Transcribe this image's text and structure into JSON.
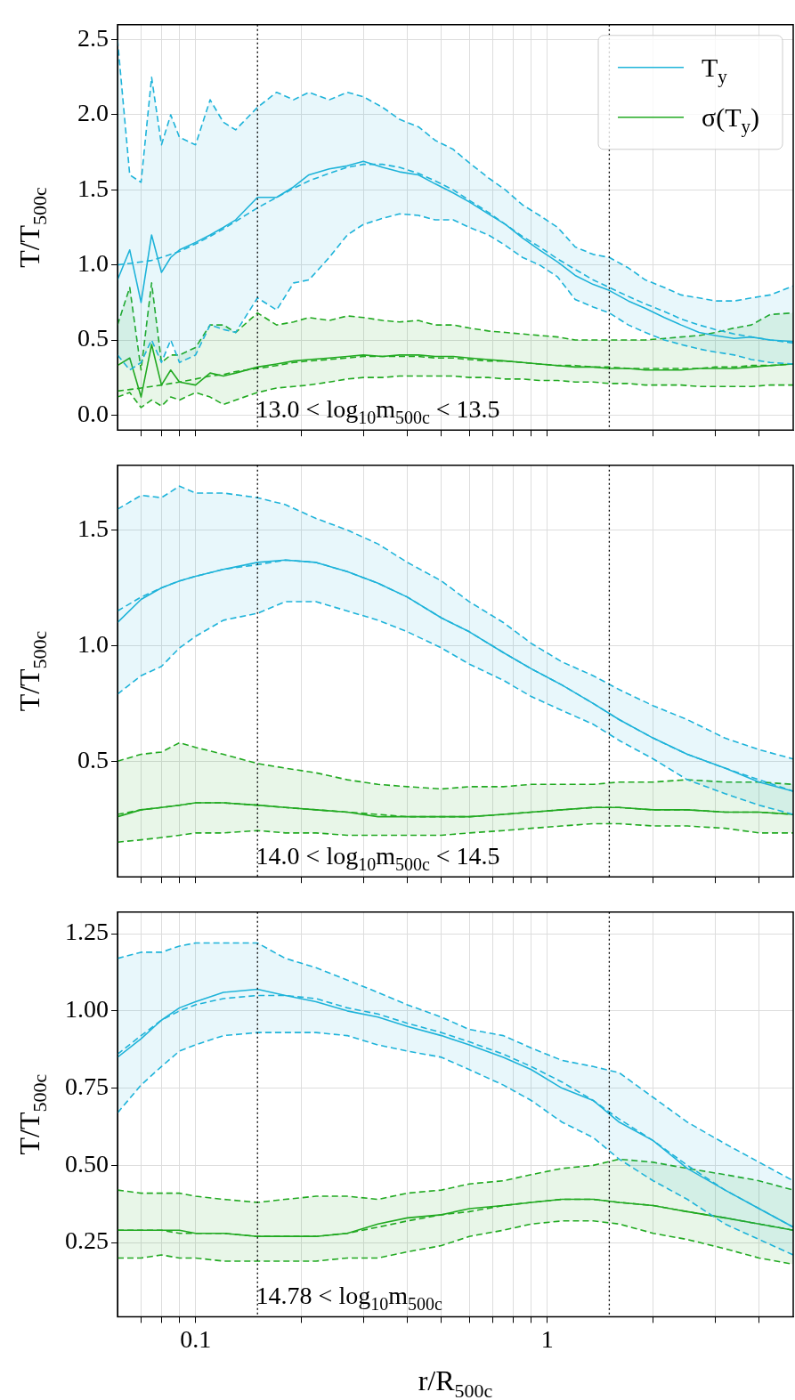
{
  "chart_data": [
    {
      "type": "line",
      "log": "x",
      "grid": true,
      "legend": "top right",
      "tick_labels": "y",
      "ylabel": "T/T$_{500c}$",
      "xlim": [
        0.06,
        5
      ],
      "ylim": [
        -0.1,
        2.6
      ],
      "xticks": [
        {
          "value": 0.07,
          "label": null
        },
        {
          "value": 0.08,
          "label": null
        },
        {
          "value": 0.09,
          "label": null
        },
        {
          "value": 0.1,
          "label": null
        },
        {
          "value": 0.2,
          "label": null
        },
        {
          "value": 0.3,
          "label": null
        },
        {
          "value": 0.4,
          "label": null
        },
        {
          "value": 0.5,
          "label": null
        },
        {
          "value": 0.6,
          "label": null
        },
        {
          "value": 0.7,
          "label": null
        },
        {
          "value": 0.8,
          "label": null
        },
        {
          "value": 0.9,
          "label": null
        },
        {
          "value": 1,
          "label": null
        },
        {
          "value": 2,
          "label": null
        },
        {
          "value": 3,
          "label": null
        },
        {
          "value": 4,
          "label": null
        }
      ],
      "yticks": [
        {
          "value": 0,
          "label": "0.0"
        },
        0.5,
        {
          "value": 1,
          "label": "1.0"
        },
        1.5,
        {
          "value": 2,
          "label": "2.0"
        },
        2.5
      ],
      "x": [
        0.06,
        0.065,
        0.07,
        0.075,
        0.08,
        0.085,
        0.09,
        0.1,
        0.11,
        0.12,
        0.13,
        0.15,
        0.17,
        0.19,
        0.21,
        0.24,
        0.27,
        0.3,
        0.34,
        0.38,
        0.43,
        0.48,
        0.54,
        0.6,
        0.68,
        0.76,
        0.85,
        0.95,
        1.07,
        1.2,
        1.35,
        1.5,
        1.7,
        1.9,
        2.15,
        2.4,
        2.7,
        3.0,
        3.4,
        3.8,
        4.3,
        5.0
      ],
      "series": [
        {
          "name": "T$_{y}$",
          "color": "#1fb4da",
          "line_style": "solid",
          "values": [
            0.9,
            1.1,
            0.75,
            1.2,
            0.95,
            1.05,
            1.1,
            1.15,
            1.2,
            1.25,
            1.3,
            1.45,
            1.45,
            1.52,
            1.6,
            1.64,
            1.66,
            1.69,
            1.65,
            1.62,
            1.6,
            1.54,
            1.48,
            1.42,
            1.34,
            1.27,
            1.18,
            1.1,
            1.02,
            0.93,
            0.87,
            0.83,
            0.76,
            0.71,
            0.65,
            0.6,
            0.55,
            0.53,
            0.51,
            0.52,
            0.5,
            0.49
          ],
          "upper": [
            2.5,
            1.6,
            1.55,
            2.25,
            1.8,
            2.0,
            1.85,
            1.8,
            2.1,
            1.95,
            1.9,
            2.05,
            2.15,
            2.1,
            2.15,
            2.1,
            2.15,
            2.12,
            2.05,
            1.97,
            1.92,
            1.83,
            1.77,
            1.68,
            1.58,
            1.5,
            1.4,
            1.33,
            1.25,
            1.12,
            1.07,
            1.05,
            0.98,
            0.9,
            0.85,
            0.8,
            0.78,
            0.76,
            0.76,
            0.78,
            0.8,
            0.86
          ],
          "lower": [
            0.4,
            0.3,
            0.35,
            0.5,
            0.35,
            0.5,
            0.35,
            0.4,
            0.6,
            0.57,
            0.55,
            0.78,
            0.7,
            0.88,
            0.9,
            1.05,
            1.2,
            1.27,
            1.31,
            1.34,
            1.33,
            1.3,
            1.3,
            1.25,
            1.2,
            1.13,
            1.05,
            1.0,
            0.92,
            0.77,
            0.72,
            0.68,
            0.6,
            0.55,
            0.5,
            0.47,
            0.44,
            0.42,
            0.4,
            0.37,
            0.35,
            0.34
          ]
        },
        {
          "color": "#1fb4da",
          "line_style": "dashed",
          "values": [
            2.5,
            1.6,
            1.55,
            2.25,
            1.8,
            2.0,
            1.85,
            1.8,
            2.1,
            1.95,
            1.9,
            2.05,
            2.15,
            2.1,
            2.15,
            2.1,
            2.15,
            2.12,
            2.05,
            1.97,
            1.92,
            1.83,
            1.77,
            1.68,
            1.58,
            1.5,
            1.4,
            1.33,
            1.25,
            1.12,
            1.07,
            1.05,
            0.98,
            0.9,
            0.85,
            0.8,
            0.78,
            0.76,
            0.76,
            0.78,
            0.8,
            0.86
          ]
        },
        {
          "color": "#1fb4da",
          "line_style": "dashed",
          "values": [
            0.4,
            0.3,
            0.35,
            0.5,
            0.35,
            0.5,
            0.35,
            0.4,
            0.6,
            0.57,
            0.55,
            0.78,
            0.7,
            0.88,
            0.9,
            1.05,
            1.2,
            1.27,
            1.31,
            1.34,
            1.33,
            1.3,
            1.3,
            1.25,
            1.2,
            1.13,
            1.05,
            1.0,
            0.92,
            0.77,
            0.72,
            0.68,
            0.6,
            0.55,
            0.5,
            0.47,
            0.44,
            0.42,
            0.4,
            0.37,
            0.35,
            0.34
          ]
        },
        {
          "color": "#1fb4da",
          "line_style": "dashed",
          "values": [
            1.0,
            1.01,
            1.02,
            1.03,
            1.05,
            1.07,
            1.09,
            1.14,
            1.19,
            1.24,
            1.29,
            1.38,
            1.45,
            1.51,
            1.56,
            1.61,
            1.65,
            1.67,
            1.67,
            1.65,
            1.61,
            1.56,
            1.5,
            1.43,
            1.35,
            1.27,
            1.19,
            1.12,
            1.04,
            0.97,
            0.9,
            0.85,
            0.79,
            0.74,
            0.69,
            0.64,
            0.6,
            0.57,
            0.54,
            0.52,
            0.5,
            0.48
          ]
        },
        {
          "name": "σ(T$_{y}$)",
          "color": "#22aa22",
          "line_style": "solid",
          "values": [
            0.33,
            0.38,
            0.12,
            0.47,
            0.2,
            0.3,
            0.22,
            0.2,
            0.28,
            0.26,
            0.28,
            0.32,
            0.34,
            0.36,
            0.37,
            0.38,
            0.39,
            0.4,
            0.39,
            0.4,
            0.4,
            0.39,
            0.39,
            0.38,
            0.37,
            0.36,
            0.35,
            0.34,
            0.33,
            0.32,
            0.32,
            0.31,
            0.31,
            0.3,
            0.3,
            0.3,
            0.31,
            0.31,
            0.31,
            0.32,
            0.33,
            0.34
          ],
          "upper": [
            0.6,
            0.85,
            0.3,
            0.88,
            0.35,
            0.4,
            0.4,
            0.45,
            0.6,
            0.6,
            0.55,
            0.68,
            0.6,
            0.62,
            0.65,
            0.63,
            0.66,
            0.65,
            0.63,
            0.62,
            0.63,
            0.6,
            0.6,
            0.58,
            0.56,
            0.55,
            0.54,
            0.53,
            0.52,
            0.5,
            0.5,
            0.5,
            0.5,
            0.5,
            0.51,
            0.52,
            0.53,
            0.55,
            0.58,
            0.6,
            0.67,
            0.68
          ],
          "lower": [
            0.12,
            0.15,
            0.05,
            0.1,
            0.06,
            0.12,
            0.1,
            0.15,
            0.12,
            0.07,
            0.1,
            0.15,
            0.18,
            0.19,
            0.2,
            0.22,
            0.24,
            0.25,
            0.25,
            0.26,
            0.26,
            0.26,
            0.26,
            0.25,
            0.25,
            0.24,
            0.24,
            0.23,
            0.23,
            0.22,
            0.22,
            0.21,
            0.21,
            0.2,
            0.2,
            0.2,
            0.19,
            0.19,
            0.19,
            0.19,
            0.2,
            0.2
          ]
        },
        {
          "color": "#22aa22",
          "line_style": "dashed",
          "values": [
            0.6,
            0.85,
            0.3,
            0.88,
            0.35,
            0.4,
            0.4,
            0.45,
            0.6,
            0.6,
            0.55,
            0.68,
            0.6,
            0.62,
            0.65,
            0.63,
            0.66,
            0.65,
            0.63,
            0.62,
            0.63,
            0.6,
            0.6,
            0.58,
            0.56,
            0.55,
            0.54,
            0.53,
            0.52,
            0.5,
            0.5,
            0.5,
            0.5,
            0.5,
            0.51,
            0.52,
            0.53,
            0.55,
            0.58,
            0.6,
            0.67,
            0.68
          ]
        },
        {
          "color": "#22aa22",
          "line_style": "dashed",
          "values": [
            0.12,
            0.15,
            0.05,
            0.1,
            0.06,
            0.12,
            0.1,
            0.15,
            0.12,
            0.07,
            0.1,
            0.15,
            0.18,
            0.19,
            0.2,
            0.22,
            0.24,
            0.25,
            0.25,
            0.26,
            0.26,
            0.26,
            0.26,
            0.25,
            0.25,
            0.24,
            0.24,
            0.23,
            0.23,
            0.22,
            0.22,
            0.21,
            0.21,
            0.2,
            0.2,
            0.2,
            0.19,
            0.19,
            0.19,
            0.19,
            0.2,
            0.2
          ]
        },
        {
          "color": "#22aa22",
          "line_style": "dashed",
          "values": [
            0.16,
            0.17,
            0.18,
            0.19,
            0.2,
            0.21,
            0.22,
            0.24,
            0.26,
            0.27,
            0.29,
            0.31,
            0.33,
            0.35,
            0.36,
            0.37,
            0.38,
            0.39,
            0.39,
            0.39,
            0.39,
            0.38,
            0.38,
            0.37,
            0.36,
            0.36,
            0.35,
            0.34,
            0.33,
            0.33,
            0.32,
            0.32,
            0.31,
            0.31,
            0.31,
            0.31,
            0.31,
            0.32,
            0.32,
            0.33,
            0.33,
            0.34
          ]
        }
      ],
      "ref_lines": [
        {
          "axis": "x",
          "value": 0.15,
          "color": "#000000",
          "line_style": "dotted"
        },
        {
          "axis": "x",
          "value": 1.5,
          "color": "#000000",
          "line_style": "dotted"
        }
      ],
      "annotations": [
        "13.0 < log$_{10}$m$_{500c}$ < 13.5"
      ]
    },
    {
      "type": "line",
      "log": "x",
      "grid": true,
      "tick_labels": "y",
      "ylabel": "T/T$_{500c}$",
      "xlim": [
        0.06,
        5
      ],
      "ylim": [
        0,
        1.78
      ],
      "xticks": [
        {
          "value": 0.07,
          "label": null
        },
        {
          "value": 0.08,
          "label": null
        },
        {
          "value": 0.09,
          "label": null
        },
        {
          "value": 0.1,
          "label": null
        },
        {
          "value": 0.2,
          "label": null
        },
        {
          "value": 0.3,
          "label": null
        },
        {
          "value": 0.4,
          "label": null
        },
        {
          "value": 0.5,
          "label": null
        },
        {
          "value": 0.6,
          "label": null
        },
        {
          "value": 0.7,
          "label": null
        },
        {
          "value": 0.8,
          "label": null
        },
        {
          "value": 0.9,
          "label": null
        },
        {
          "value": 1,
          "label": null
        },
        {
          "value": 2,
          "label": null
        },
        {
          "value": 3,
          "label": null
        },
        {
          "value": 4,
          "label": null
        }
      ],
      "yticks": [
        0.5,
        {
          "value": 1,
          "label": "1.0"
        },
        1.5
      ],
      "x": [
        0.06,
        0.07,
        0.08,
        0.09,
        0.1,
        0.12,
        0.15,
        0.18,
        0.22,
        0.27,
        0.33,
        0.4,
        0.5,
        0.6,
        0.75,
        0.9,
        1.1,
        1.35,
        1.6,
        2.0,
        2.5,
        3.2,
        4.0,
        5.0
      ],
      "series": [
        {
          "color": "#1fb4da",
          "line_style": "solid",
          "values": [
            1.1,
            1.2,
            1.25,
            1.28,
            1.3,
            1.33,
            1.36,
            1.37,
            1.36,
            1.32,
            1.27,
            1.21,
            1.12,
            1.06,
            0.97,
            0.9,
            0.83,
            0.75,
            0.68,
            0.6,
            0.53,
            0.47,
            0.41,
            0.37
          ],
          "upper": [
            1.59,
            1.65,
            1.64,
            1.69,
            1.66,
            1.66,
            1.64,
            1.61,
            1.55,
            1.5,
            1.44,
            1.36,
            1.28,
            1.19,
            1.1,
            1.01,
            0.93,
            0.87,
            0.81,
            0.74,
            0.68,
            0.6,
            0.55,
            0.51
          ],
          "lower": [
            0.79,
            0.87,
            0.91,
            0.99,
            1.04,
            1.11,
            1.14,
            1.19,
            1.19,
            1.15,
            1.11,
            1.06,
            0.99,
            0.92,
            0.85,
            0.78,
            0.72,
            0.66,
            0.59,
            0.51,
            0.42,
            0.36,
            0.31,
            0.27
          ]
        },
        {
          "color": "#1fb4da",
          "line_style": "dashed",
          "values": [
            1.59,
            1.65,
            1.64,
            1.69,
            1.66,
            1.66,
            1.64,
            1.61,
            1.55,
            1.5,
            1.44,
            1.36,
            1.28,
            1.19,
            1.1,
            1.01,
            0.93,
            0.87,
            0.81,
            0.74,
            0.68,
            0.6,
            0.55,
            0.51
          ]
        },
        {
          "color": "#1fb4da",
          "line_style": "dashed",
          "values": [
            0.79,
            0.87,
            0.91,
            0.99,
            1.04,
            1.11,
            1.14,
            1.19,
            1.19,
            1.15,
            1.11,
            1.06,
            0.99,
            0.92,
            0.85,
            0.78,
            0.72,
            0.66,
            0.59,
            0.51,
            0.42,
            0.36,
            0.31,
            0.27
          ]
        },
        {
          "color": "#1fb4da",
          "line_style": "dashed",
          "values": [
            1.15,
            1.21,
            1.25,
            1.28,
            1.3,
            1.33,
            1.35,
            1.37,
            1.36,
            1.32,
            1.27,
            1.21,
            1.12,
            1.06,
            0.97,
            0.9,
            0.83,
            0.75,
            0.68,
            0.6,
            0.53,
            0.47,
            0.42,
            0.37
          ]
        },
        {
          "color": "#22aa22",
          "line_style": "solid",
          "values": [
            0.26,
            0.29,
            0.3,
            0.31,
            0.32,
            0.32,
            0.31,
            0.3,
            0.29,
            0.28,
            0.26,
            0.26,
            0.26,
            0.26,
            0.27,
            0.28,
            0.29,
            0.3,
            0.3,
            0.29,
            0.29,
            0.28,
            0.28,
            0.27
          ],
          "upper": [
            0.5,
            0.53,
            0.54,
            0.58,
            0.56,
            0.53,
            0.49,
            0.47,
            0.45,
            0.42,
            0.4,
            0.39,
            0.38,
            0.39,
            0.39,
            0.4,
            0.4,
            0.4,
            0.41,
            0.41,
            0.42,
            0.41,
            0.41,
            0.4
          ],
          "lower": [
            0.15,
            0.16,
            0.17,
            0.18,
            0.19,
            0.19,
            0.2,
            0.19,
            0.19,
            0.18,
            0.18,
            0.18,
            0.18,
            0.19,
            0.2,
            0.21,
            0.22,
            0.23,
            0.23,
            0.22,
            0.22,
            0.21,
            0.19,
            0.19
          ]
        },
        {
          "color": "#22aa22",
          "line_style": "dashed",
          "values": [
            0.5,
            0.53,
            0.54,
            0.58,
            0.56,
            0.53,
            0.49,
            0.47,
            0.45,
            0.42,
            0.4,
            0.39,
            0.38,
            0.39,
            0.39,
            0.4,
            0.4,
            0.4,
            0.41,
            0.41,
            0.42,
            0.41,
            0.41,
            0.4
          ]
        },
        {
          "color": "#22aa22",
          "line_style": "dashed",
          "values": [
            0.15,
            0.16,
            0.17,
            0.18,
            0.19,
            0.19,
            0.2,
            0.19,
            0.19,
            0.18,
            0.18,
            0.18,
            0.18,
            0.19,
            0.2,
            0.21,
            0.22,
            0.23,
            0.23,
            0.22,
            0.22,
            0.21,
            0.19,
            0.19
          ]
        },
        {
          "color": "#22aa22",
          "line_style": "dashed",
          "values": [
            0.27,
            0.29,
            0.3,
            0.31,
            0.32,
            0.32,
            0.31,
            0.3,
            0.29,
            0.28,
            0.27,
            0.26,
            0.26,
            0.26,
            0.27,
            0.28,
            0.29,
            0.3,
            0.3,
            0.29,
            0.29,
            0.28,
            0.28,
            0.27
          ]
        }
      ],
      "ref_lines": [
        {
          "axis": "x",
          "value": 0.15,
          "color": "#000000",
          "line_style": "dotted"
        },
        {
          "axis": "x",
          "value": 1.5,
          "color": "#000000",
          "line_style": "dotted"
        }
      ],
      "annotations": [
        "14.0 < log$_{10}$m$_{500c}$ < 14.5"
      ]
    },
    {
      "type": "line",
      "log": "x",
      "grid": true,
      "xlabel": "r/R$_{500c}$",
      "ylabel": "T/T$_{500c}$",
      "xlim": [
        0.06,
        5
      ],
      "ylim": [
        0.01,
        1.32
      ],
      "xticks": [
        {
          "value": 0.07,
          "label": null
        },
        {
          "value": 0.08,
          "label": null
        },
        {
          "value": 0.09,
          "label": null
        },
        0.1,
        {
          "value": 0.2,
          "label": null
        },
        {
          "value": 0.3,
          "label": null
        },
        {
          "value": 0.4,
          "label": null
        },
        {
          "value": 0.5,
          "label": null
        },
        {
          "value": 0.6,
          "label": null
        },
        {
          "value": 0.7,
          "label": null
        },
        {
          "value": 0.8,
          "label": null
        },
        {
          "value": 0.9,
          "label": null
        },
        1,
        {
          "value": 2,
          "label": null
        },
        {
          "value": 3,
          "label": null
        },
        {
          "value": 4,
          "label": null
        }
      ],
      "yticks": [
        0.25,
        {
          "value": 0.5,
          "label": "0.50"
        },
        0.75,
        {
          "value": 1,
          "label": "1.00"
        },
        1.25
      ],
      "x": [
        0.06,
        0.07,
        0.08,
        0.09,
        0.1,
        0.12,
        0.15,
        0.18,
        0.22,
        0.27,
        0.33,
        0.4,
        0.5,
        0.6,
        0.75,
        0.9,
        1.1,
        1.35,
        1.6,
        2.0,
        2.5,
        3.2,
        4.0,
        5.0
      ],
      "series": [
        {
          "color": "#1fb4da",
          "line_style": "solid",
          "values": [
            0.85,
            0.91,
            0.97,
            1.01,
            1.03,
            1.06,
            1.07,
            1.05,
            1.03,
            1.0,
            0.98,
            0.95,
            0.92,
            0.89,
            0.85,
            0.81,
            0.75,
            0.71,
            0.64,
            0.58,
            0.49,
            0.42,
            0.36,
            0.3
          ],
          "upper": [
            1.17,
            1.19,
            1.19,
            1.21,
            1.22,
            1.22,
            1.22,
            1.17,
            1.14,
            1.1,
            1.06,
            1.02,
            0.98,
            0.94,
            0.92,
            0.88,
            0.84,
            0.82,
            0.8,
            0.72,
            0.64,
            0.57,
            0.51,
            0.45
          ],
          "lower": [
            0.67,
            0.76,
            0.82,
            0.87,
            0.89,
            0.92,
            0.93,
            0.93,
            0.93,
            0.92,
            0.89,
            0.87,
            0.85,
            0.81,
            0.76,
            0.71,
            0.64,
            0.59,
            0.52,
            0.45,
            0.39,
            0.31,
            0.26,
            0.21
          ]
        },
        {
          "color": "#1fb4da",
          "line_style": "dashed",
          "values": [
            1.17,
            1.19,
            1.19,
            1.21,
            1.22,
            1.22,
            1.22,
            1.17,
            1.14,
            1.1,
            1.06,
            1.02,
            0.98,
            0.94,
            0.92,
            0.88,
            0.84,
            0.82,
            0.8,
            0.72,
            0.64,
            0.57,
            0.51,
            0.45
          ]
        },
        {
          "color": "#1fb4da",
          "line_style": "dashed",
          "values": [
            0.67,
            0.76,
            0.82,
            0.87,
            0.89,
            0.92,
            0.93,
            0.93,
            0.93,
            0.92,
            0.89,
            0.87,
            0.85,
            0.81,
            0.76,
            0.71,
            0.64,
            0.59,
            0.52,
            0.45,
            0.39,
            0.31,
            0.26,
            0.21
          ]
        },
        {
          "color": "#1fb4da",
          "line_style": "dashed",
          "values": [
            0.86,
            0.92,
            0.97,
            1.0,
            1.02,
            1.04,
            1.05,
            1.05,
            1.04,
            1.01,
            0.99,
            0.96,
            0.93,
            0.9,
            0.86,
            0.82,
            0.77,
            0.71,
            0.65,
            0.58,
            0.5,
            0.42,
            0.36,
            0.3
          ]
        },
        {
          "color": "#22aa22",
          "line_style": "solid",
          "values": [
            0.29,
            0.29,
            0.29,
            0.29,
            0.28,
            0.28,
            0.27,
            0.27,
            0.27,
            0.28,
            0.31,
            0.33,
            0.34,
            0.36,
            0.37,
            0.38,
            0.39,
            0.39,
            0.38,
            0.37,
            0.35,
            0.33,
            0.31,
            0.29
          ],
          "upper": [
            0.42,
            0.41,
            0.41,
            0.41,
            0.4,
            0.39,
            0.38,
            0.39,
            0.4,
            0.4,
            0.39,
            0.41,
            0.42,
            0.44,
            0.45,
            0.47,
            0.49,
            0.5,
            0.52,
            0.51,
            0.49,
            0.47,
            0.45,
            0.42
          ],
          "lower": [
            0.2,
            0.2,
            0.21,
            0.2,
            0.2,
            0.19,
            0.19,
            0.19,
            0.19,
            0.2,
            0.2,
            0.22,
            0.24,
            0.27,
            0.29,
            0.31,
            0.32,
            0.32,
            0.31,
            0.28,
            0.26,
            0.23,
            0.2,
            0.18
          ]
        },
        {
          "color": "#22aa22",
          "line_style": "dashed",
          "values": [
            0.42,
            0.41,
            0.41,
            0.41,
            0.4,
            0.39,
            0.38,
            0.39,
            0.4,
            0.4,
            0.39,
            0.41,
            0.42,
            0.44,
            0.45,
            0.47,
            0.49,
            0.5,
            0.52,
            0.51,
            0.49,
            0.47,
            0.45,
            0.42
          ]
        },
        {
          "color": "#22aa22",
          "line_style": "dashed",
          "values": [
            0.2,
            0.2,
            0.21,
            0.2,
            0.2,
            0.19,
            0.19,
            0.19,
            0.19,
            0.2,
            0.2,
            0.22,
            0.24,
            0.27,
            0.29,
            0.31,
            0.32,
            0.32,
            0.31,
            0.28,
            0.26,
            0.23,
            0.2,
            0.18
          ]
        },
        {
          "color": "#22aa22",
          "line_style": "dashed",
          "values": [
            0.29,
            0.29,
            0.29,
            0.28,
            0.28,
            0.28,
            0.27,
            0.27,
            0.27,
            0.28,
            0.3,
            0.32,
            0.34,
            0.35,
            0.37,
            0.38,
            0.39,
            0.39,
            0.38,
            0.37,
            0.35,
            0.33,
            0.31,
            0.29
          ]
        }
      ],
      "ref_lines": [
        {
          "axis": "x",
          "value": 0.15,
          "color": "#000000",
          "line_style": "dotted"
        },
        {
          "axis": "x",
          "value": 1.5,
          "color": "#000000",
          "line_style": "dotted"
        }
      ],
      "annotations": [
        "14.78 < log$_{10}$m$_{500c}$"
      ]
    }
  ]
}
